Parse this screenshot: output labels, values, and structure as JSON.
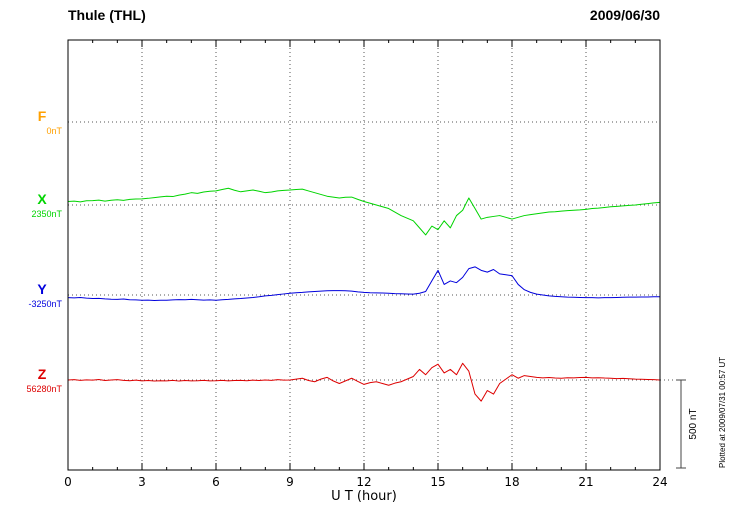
{
  "footer": {
    "plotted_note": "Plotted at 2009/07/31 00:57 UT"
  },
  "chart_data": {
    "type": "line",
    "title": "Thule (THL)",
    "date": "2009/06/30",
    "xlabel": "U T (hour)",
    "x_range": [
      0,
      24
    ],
    "x_tick_step": 3,
    "x_ticks": [
      "0",
      "3",
      "6",
      "9",
      "12",
      "15",
      "18",
      "21",
      "24"
    ],
    "sample_interval_hours": 0.25,
    "units": "nT offset from channel baseline",
    "scale_bar_label": "500 nT",
    "scale_bar_nT": 500,
    "grid": "dotted vertical every 3h, dotted horizontal at each channel baseline",
    "series": [
      {
        "name": "F",
        "baseline_label": "0nT",
        "baseline_value": 0,
        "color": "#FFA000",
        "visible": false,
        "values": []
      },
      {
        "name": "X",
        "baseline_label": "2350nT",
        "baseline_value": 2350,
        "color": "#00D400",
        "visible": true,
        "values": [
          20,
          22,
          18,
          24,
          25,
          28,
          22,
          27,
          30,
          26,
          32,
          34,
          35,
          38,
          42,
          46,
          50,
          48,
          56,
          62,
          70,
          66,
          74,
          78,
          80,
          88,
          95,
          84,
          75,
          80,
          85,
          78,
          70,
          74,
          80,
          83,
          85,
          88,
          90,
          80,
          70,
          60,
          50,
          45,
          40,
          44,
          45,
          32,
          20,
          10,
          0,
          -10,
          -20,
          -40,
          -60,
          -75,
          -90,
          -130,
          -170,
          -120,
          -140,
          -90,
          -130,
          -60,
          -30,
          40,
          -20,
          -80,
          -70,
          -65,
          -60,
          -70,
          -80,
          -70,
          -60,
          -55,
          -50,
          -45,
          -40,
          -38,
          -35,
          -32,
          -30,
          -28,
          -25,
          -20,
          -18,
          -14,
          -10,
          -8,
          -5,
          -2,
          0,
          4,
          8,
          12,
          15
        ]
      },
      {
        "name": "Y",
        "baseline_label": "-3250nT",
        "baseline_value": -3250,
        "color": "#0000DD",
        "visible": true,
        "values": [
          -15,
          -16,
          -14,
          -18,
          -20,
          -19,
          -22,
          -24,
          -25,
          -23,
          -27,
          -28,
          -30,
          -29,
          -31,
          -30,
          -30,
          -28,
          -26,
          -27,
          -25,
          -27,
          -29,
          -28,
          -30,
          -27,
          -25,
          -22,
          -20,
          -17,
          -14,
          -10,
          -5,
          -2,
          2,
          6,
          10,
          13,
          15,
          18,
          20,
          22,
          24,
          25,
          25,
          24,
          22,
          18,
          15,
          13,
          12,
          11,
          10,
          8,
          7,
          6,
          5,
          10,
          20,
          80,
          140,
          60,
          80,
          70,
          100,
          150,
          160,
          140,
          130,
          145,
          120,
          115,
          110,
          60,
          30,
          15,
          5,
          0,
          -5,
          -8,
          -10,
          -12,
          -13,
          -14,
          -15,
          -15,
          -16,
          -15,
          -15,
          -14,
          -13,
          -12,
          -12,
          -11,
          -11,
          -10,
          -10
        ]
      },
      {
        "name": "Z",
        "baseline_label": "56280nT",
        "baseline_value": 56280,
        "color": "#DD0000",
        "visible": true,
        "values": [
          0,
          2,
          -2,
          1,
          -1,
          3,
          -3,
          0,
          2,
          -2,
          -4,
          -1,
          -5,
          -3,
          -6,
          -4,
          -5,
          -2,
          -6,
          -3,
          -5,
          -4,
          -2,
          -5,
          -4,
          -2,
          -5,
          -3,
          -2,
          -4,
          -1,
          -3,
          0,
          -2,
          2,
          -1,
          0,
          5,
          10,
          -3,
          -10,
          5,
          15,
          -5,
          -20,
          -5,
          10,
          -8,
          -25,
          -15,
          -10,
          -20,
          -30,
          -18,
          -10,
          5,
          20,
          60,
          30,
          70,
          90,
          40,
          60,
          30,
          95,
          50,
          -80,
          -120,
          -60,
          -80,
          -20,
          5,
          30,
          10,
          25,
          20,
          15,
          12,
          14,
          11,
          10,
          13,
          12,
          14,
          15,
          12,
          13,
          11,
          10,
          8,
          9,
          7,
          5,
          4,
          3,
          2,
          0
        ]
      }
    ]
  }
}
